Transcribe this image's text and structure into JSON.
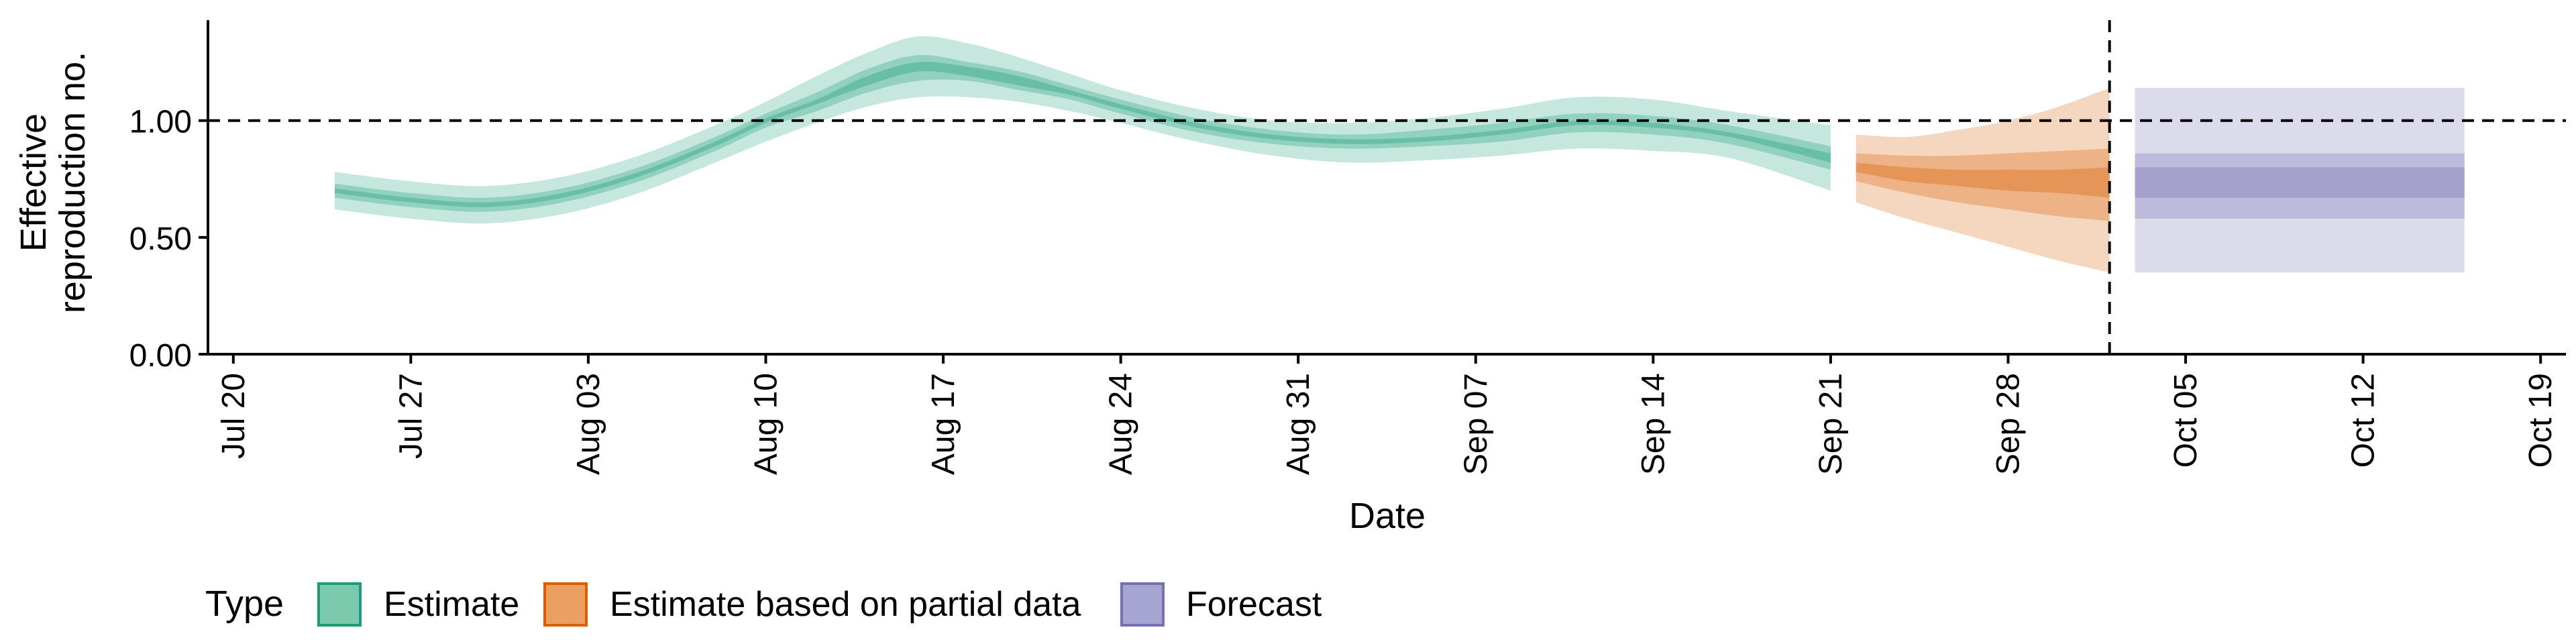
{
  "chart_data": {
    "type": "area",
    "xlabel": "Date",
    "ylabel": [
      "Effective",
      "reproduction no."
    ],
    "x_ticks": [
      "Jul 20",
      "Jul 27",
      "Aug 03",
      "Aug 10",
      "Aug 17",
      "Aug 24",
      "Aug 31",
      "Sep 07",
      "Sep 14",
      "Sep 21",
      "Sep 28",
      "Oct 05",
      "Oct 12",
      "Oct 19"
    ],
    "y_ticks": [
      "0.00",
      "0.50",
      "1.00"
    ],
    "ylim": [
      0,
      1.43
    ],
    "xlim": [
      "2020-07-19",
      "2020-10-20"
    ],
    "grid": false,
    "reference_lines": {
      "horizontal_y": 1.0,
      "vertical_date": "2020-10-02"
    },
    "legend": {
      "title": "Type",
      "position": "bottom",
      "items": [
        {
          "label": "Estimate",
          "fill": "#7ccaad",
          "stroke": "#1b9e77"
        },
        {
          "label": "Estimate based on partial data",
          "fill": "#eba061",
          "stroke": "#d95f02"
        },
        {
          "label": "Forecast",
          "fill": "#a6a5d2",
          "stroke": "#7570b3"
        }
      ]
    },
    "series": [
      {
        "name": "Estimate",
        "color": "#1b9e77",
        "x": [
          "2020-07-24",
          "2020-07-27",
          "2020-07-30",
          "2020-08-02",
          "2020-08-05",
          "2020-08-08",
          "2020-08-10",
          "2020-08-12",
          "2020-08-14",
          "2020-08-16",
          "2020-08-18",
          "2020-08-20",
          "2020-08-22",
          "2020-08-24",
          "2020-08-27",
          "2020-08-30",
          "2020-09-02",
          "2020-09-05",
          "2020-09-08",
          "2020-09-11",
          "2020-09-14",
          "2020-09-17",
          "2020-09-21"
        ],
        "median": [
          0.7,
          0.66,
          0.64,
          0.68,
          0.77,
          0.9,
          1.0,
          1.08,
          1.17,
          1.23,
          1.21,
          1.17,
          1.12,
          1.06,
          0.98,
          0.93,
          0.91,
          0.92,
          0.95,
          0.99,
          0.98,
          0.94,
          0.84
        ],
        "lower90": [
          0.62,
          0.58,
          0.56,
          0.6,
          0.69,
          0.82,
          0.91,
          0.99,
          1.06,
          1.1,
          1.1,
          1.08,
          1.04,
          0.99,
          0.91,
          0.85,
          0.82,
          0.83,
          0.85,
          0.88,
          0.87,
          0.84,
          0.7
        ],
        "upper90": [
          0.78,
          0.74,
          0.72,
          0.76,
          0.85,
          0.98,
          1.08,
          1.19,
          1.29,
          1.36,
          1.33,
          1.27,
          1.2,
          1.13,
          1.05,
          1.0,
          0.99,
          1.01,
          1.05,
          1.1,
          1.09,
          1.04,
          0.98
        ],
        "lower50": [
          0.67,
          0.63,
          0.61,
          0.65,
          0.74,
          0.87,
          0.97,
          1.04,
          1.12,
          1.17,
          1.17,
          1.13,
          1.09,
          1.03,
          0.95,
          0.9,
          0.88,
          0.89,
          0.91,
          0.95,
          0.94,
          0.9,
          0.79
        ],
        "upper50": [
          0.73,
          0.69,
          0.67,
          0.71,
          0.8,
          0.93,
          1.03,
          1.12,
          1.22,
          1.28,
          1.25,
          1.21,
          1.15,
          1.09,
          1.01,
          0.96,
          0.94,
          0.96,
          0.99,
          1.03,
          1.02,
          0.98,
          0.89
        ],
        "lower20": [
          0.69,
          0.65,
          0.63,
          0.67,
          0.76,
          0.89,
          0.99,
          1.07,
          1.15,
          1.21,
          1.19,
          1.15,
          1.11,
          1.05,
          0.97,
          0.92,
          0.9,
          0.91,
          0.94,
          0.98,
          0.97,
          0.93,
          0.82
        ],
        "upper20": [
          0.71,
          0.67,
          0.65,
          0.69,
          0.78,
          0.91,
          1.01,
          1.09,
          1.19,
          1.25,
          1.23,
          1.19,
          1.13,
          1.07,
          0.99,
          0.94,
          0.92,
          0.93,
          0.96,
          1.0,
          0.99,
          0.95,
          0.86
        ]
      },
      {
        "name": "Estimate based on partial data",
        "color": "#d95f02",
        "x": [
          "2020-09-22",
          "2020-09-24",
          "2020-09-26",
          "2020-09-28",
          "2020-09-30",
          "2020-10-02"
        ],
        "median": [
          0.8,
          0.77,
          0.75,
          0.74,
          0.73,
          0.73
        ],
        "lower90": [
          0.65,
          0.58,
          0.52,
          0.46,
          0.4,
          0.35
        ],
        "upper90": [
          0.94,
          0.93,
          0.96,
          1.0,
          1.06,
          1.14
        ],
        "lower50": [
          0.74,
          0.69,
          0.65,
          0.62,
          0.59,
          0.57
        ],
        "upper50": [
          0.86,
          0.85,
          0.85,
          0.86,
          0.87,
          0.88
        ],
        "lower20": [
          0.78,
          0.74,
          0.72,
          0.7,
          0.69,
          0.67
        ],
        "upper20": [
          0.82,
          0.8,
          0.79,
          0.79,
          0.79,
          0.8
        ]
      },
      {
        "name": "Forecast",
        "color": "#7570b3",
        "x": [
          "2020-10-03",
          "2020-10-16"
        ],
        "median": [
          0.73,
          0.73
        ],
        "lower90": [
          0.35,
          0.35
        ],
        "upper90": [
          1.14,
          1.14
        ],
        "lower50": [
          0.58,
          0.58
        ],
        "upper50": [
          0.86,
          0.86
        ],
        "lower20": [
          0.67,
          0.67
        ],
        "upper20": [
          0.8,
          0.8
        ]
      }
    ]
  }
}
